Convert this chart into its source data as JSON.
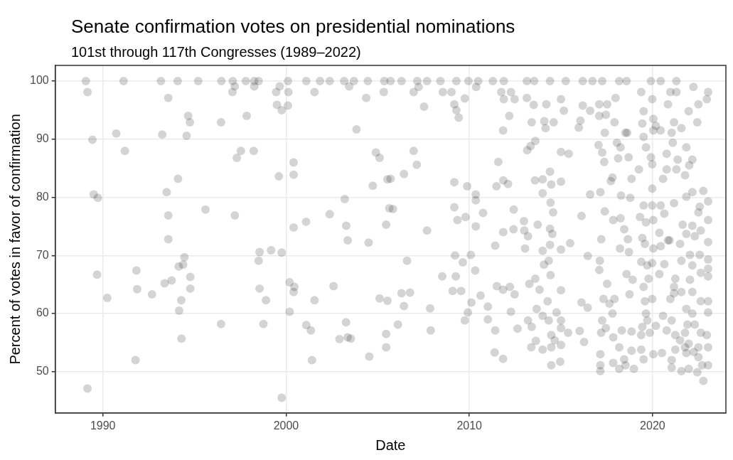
{
  "chart_data": {
    "type": "scatter",
    "title": "Senate confirmation votes on presidential nominations",
    "subtitle": "101st through 117th Congresses (1989–2022)",
    "xlabel": "Date",
    "ylabel": "Percent of votes in favor of confirmation",
    "xlim": [
      1987.4,
      2024.0
    ],
    "ylim": [
      42.9,
      102.7
    ],
    "xticks": [
      1990,
      2000,
      2010,
      2020
    ],
    "yticks": [
      50,
      60,
      70,
      80,
      90,
      100
    ],
    "grid": true,
    "marker": "circle",
    "legend": false,
    "series": [
      {
        "color": "#000000",
        "x": [
          1989.07,
          1989.16,
          1991.13,
          1993.17,
          1994.08,
          1995.2,
          1996.47,
          1997.09,
          1997.8,
          1998.26,
          1998.5,
          2000.1,
          2001.1,
          2001.85,
          2002.38,
          2003.17,
          2003.7,
          2004.46,
          2005.36,
          1997.2,
          1998.26,
          1997.07,
          1999.65,
          1999.46,
          2000.12,
          2001.55,
          2003.44,
          2004.37,
          2005.33,
          1993.57,
          1999.5,
          2000.1,
          1999.76,
          1994.65,
          1994.75,
          1996.45,
          1997.85,
          2003.84,
          1990.73,
          1993.24,
          1994.57,
          1989.43,
          1991.2,
          1997.53,
          1998.23,
          1997.31,
          2000.41,
          2000.41,
          1999.6,
          2004.9,
          2005.1,
          2004.73,
          1994.1,
          1993.48,
          1989.5,
          1989.73,
          2005.53,
          2003.2,
          1995.6,
          1993.57,
          1997.2,
          2002.38,
          2005.63,
          2001.09,
          2000.41,
          2003.28,
          2003.36,
          2004.5,
          2005.46,
          1993.57,
          1998.55,
          1999.18,
          1999.76,
          1998.5,
          1994.45,
          1994.14,
          1994.38,
          1989.68,
          1991.83,
          1994.77,
          1993.37,
          1993.75,
          1994.77,
          1991.87,
          1992.68,
          1990.24,
          1994.28,
          1994.16,
          1998.55,
          1998.9,
          2000.19,
          2000.45,
          2000.41,
          2001.55,
          2002.59,
          2000.19,
          2005.1,
          2005.53,
          1996.45,
          1998.76,
          2001.1,
          2001.35,
          2003.27,
          2002.91,
          2003.36,
          2003.53,
          2005.46,
          2005.46,
          1994.29,
          1991.78,
          2001.41,
          2004.54,
          1989.16,
          1999.76,
          2005.7,
          2006.3,
          2007.16,
          2007.69,
          2008.42,
          2009.29,
          2009.95,
          2010.48,
          2011.28,
          2011.88,
          2013.14,
          2013.54,
          2014.4,
          2015.26,
          2016.19,
          2016.72,
          2017.25,
          2018.18,
          2018.58,
          2019.91,
          2020.44,
          2021.3,
          2006.96,
          2007.23,
          2007.53,
          2008.55,
          2009.02,
          2009.18,
          2009.29,
          2009.42,
          2009.75,
          2010.37,
          2011.74,
          2012.27,
          2012.47,
          2011.88,
          2012.18,
          2011.84,
          2013.14,
          2013.51,
          2013.4,
          2014.2,
          2014.09,
          2014.6,
          2014.16,
          2015.0,
          2015.16,
          2016.06,
          2015.97,
          2016.59,
          2016.19,
          2017.09,
          2017.52,
          2017.09,
          2017.45,
          2017.92,
          2017.39,
          2017.98,
          2019.38,
          2019.98,
          2019.51,
          2019.44,
          2020.04,
          2019.51,
          2020.97,
          2021.3,
          2022.23,
          2023.03,
          2022.96,
          2022.5,
          2021.97,
          2022.44,
          2020.84,
          2021.17,
          2021.57,
          2021.04,
          2018.61,
          2006.96,
          2007.13,
          2006.43,
          2005.7,
          2007.69,
          2005.83,
          2006.6,
          2006.3,
          2006.76,
          2006.43,
          2006.1,
          2007.86,
          2007.89,
          2008.52,
          2009.18,
          2009.18,
          2009.35,
          2009.79,
          2009.22,
          2009.26,
          2009.09,
          2009.55,
          2009.64,
          2010.08,
          2010.32,
          2009.88,
          2010.35,
          2010.35,
          2010.75,
          2010.35,
          2010.11,
          2009.92,
          2009.75,
          2010.61,
          2011.01,
          2011.01,
          2011.41,
          2011.38,
          2011.84,
          2011.58,
          2011.85,
          2011.48,
          2012.11,
          2011.85,
          2011.41,
          2011.5,
          2011.84,
          2012.21,
          2012.47,
          2012.27,
          2012.63,
          2012.42,
          2012.41,
          2012.98,
          2013.04,
          2013.2,
          2013.0,
          2013.6,
          2013.34,
          2013.16,
          2013.58,
          2013.73,
          2013.27,
          2013.6,
          2013.83,
          2013.2,
          2013.4,
          2013.63,
          2013.38,
          2014.0,
          2013.67,
          2014.0,
          2014.0,
          2014.4,
          2014.47,
          2014.43,
          2014.57,
          2014.4,
          2014.53,
          2014.4,
          2014.0,
          2014.33,
          2014.07,
          2014.43,
          2014.27,
          2014.0,
          2014.33,
          2014.47,
          2014.66,
          2014.47,
          2015.0,
          2014.47,
          2014.96,
          2015.0,
          2015.0,
          2014.76,
          2015.39,
          2015.0,
          2015.0,
          2015.42,
          2015.5,
          2015.0,
          2015.0,
          2016.12,
          2016.02,
          2016.26,
          2016.12,
          2016.46,
          2016.46,
          2016.59,
          2017.15,
          2017.39,
          2017.2,
          2017.12,
          2017.09,
          2017.52,
          2017.32,
          2017.25,
          2017.19,
          2017.15,
          2017.15,
          2017.15,
          2017.05,
          2017.25,
          2017.36,
          2017.72,
          2017.81,
          2018.05,
          2018.25,
          2018.12,
          2018.52,
          2018.69,
          2017.85,
          2018.25,
          2018.45,
          2018.65,
          2018.22,
          2018.71,
          2018.58,
          2018.91,
          2018.74,
          2017.92,
          2017.65,
          2017.81,
          2017.45,
          2017.85,
          2018.32,
          2018.85,
          2018.18,
          2017.85,
          2018.18,
          2018.52,
          2018.98,
          2018.85,
          2018.45,
          2018.28,
          2018.78,
          2018.85,
          2019.25,
          2019.51,
          2019.31,
          2019.64,
          2019.44,
          2019.58,
          2019.38,
          2019.71,
          2019.51,
          2019.58,
          2019.64,
          2019.71,
          2019.44,
          2019.38,
          2019.38,
          2019.51,
          2019.98,
          2019.98,
          2020.04,
          2020.04,
          2019.98,
          2019.78,
          2019.98,
          2019.85,
          2020.04,
          2020.18,
          2019.91,
          2019.98,
          2019.64,
          2020.04,
          2020.18,
          2020.44,
          2020.77,
          2020.77,
          2020.57,
          2020.44,
          2020.64,
          2020.37,
          2020.84,
          2020.44,
          2020.64,
          2020.37,
          2021.17,
          2020.97,
          2020.57,
          2021.04,
          2020.77,
          2020.51,
          2021.04,
          2021.24,
          2021.5,
          2021.57,
          2021.1,
          2021.37,
          2021.84,
          2022.17,
          2022.0,
          2021.77,
          2021.3,
          2021.17,
          2021.84,
          2022.17,
          2022.77,
          2023.03,
          2023.03,
          2022.57,
          2022.5,
          2021.64,
          2022.17,
          2022.63,
          2021.84,
          2022.3,
          2023.03,
          2020.92,
          2021.5,
          2022.04,
          2022.57,
          2023.03,
          2021.57,
          2022.17,
          2023.03,
          2022.63,
          2021.24,
          2022.04,
          2023.03,
          2022.17,
          2021.17,
          2021.57,
          2022.63,
          2023.03,
          2021.84,
          2022.17,
          2023.03,
          2021.9,
          2022.3,
          2022.63,
          2022.96,
          2021.77,
          2021.24,
          2021.77,
          2021.97,
          2022.5,
          2023.03,
          2021.84,
          2022.24,
          2022.5,
          2022.7,
          2023.03,
          2021.97,
          2022.44,
          2022.77,
          2021.04
        ],
        "values": [
          100,
          98.1,
          100,
          100,
          100,
          100,
          100,
          100,
          100,
          100,
          100,
          100,
          100,
          100,
          100,
          100,
          100,
          100,
          100,
          99.1,
          99.1,
          98.1,
          99.1,
          98.1,
          98.1,
          98.1,
          99.1,
          97.1,
          98.1,
          97.1,
          95.9,
          95.8,
          95.0,
          94.0,
          92.9,
          92.9,
          94.0,
          91.7,
          91.0,
          90.8,
          90.6,
          89.9,
          88.0,
          88.0,
          88.0,
          86.8,
          86.0,
          83.9,
          83.6,
          87.7,
          86.8,
          82.0,
          83.2,
          80.9,
          80.5,
          79.9,
          83.1,
          79.7,
          77.9,
          76.9,
          76.9,
          77.1,
          78.1,
          75.8,
          74.8,
          75.1,
          72.6,
          72.2,
          75.3,
          72.8,
          70.6,
          70.9,
          70.5,
          69.1,
          69.7,
          68.1,
          68.4,
          66.7,
          67.4,
          66.3,
          65.2,
          65.7,
          64.3,
          64.2,
          63.3,
          62.7,
          62.3,
          60.5,
          64.3,
          62.3,
          65.4,
          64.6,
          63.7,
          62.3,
          64.7,
          60.3,
          62.6,
          62.2,
          58.2,
          58.2,
          58.0,
          57.1,
          58.5,
          55.6,
          55.9,
          55.7,
          56.5,
          54.2,
          55.7,
          52.0,
          52.0,
          52.6,
          47.1,
          45.5,
          100,
          100,
          100,
          100,
          100,
          100,
          100,
          100,
          100,
          100,
          100,
          100,
          100,
          100,
          100,
          100,
          100,
          100,
          100,
          100,
          100,
          100,
          98.1,
          99.0,
          95.6,
          98.1,
          98.1,
          96.0,
          95.0,
          93.7,
          97.0,
          99.0,
          98.1,
          98.1,
          96.9,
          96.9,
          94.0,
          91.5,
          97.1,
          95.9,
          92.9,
          96.0,
          93.1,
          92.9,
          91.9,
          96.9,
          94.9,
          93.2,
          92.0,
          94.9,
          95.8,
          96.0,
          96.0,
          94.0,
          94.2,
          92.9,
          91.1,
          97.1,
          98.1,
          96.9,
          94.8,
          92.7,
          91.5,
          90.4,
          98.1,
          98.1,
          99.0,
          98.1,
          96.9,
          96.0,
          94.8,
          92.9,
          96.0,
          92.9,
          91.9,
          91.1,
          91.1,
          88.0,
          85.6,
          84.0,
          83.2,
          74.3,
          78.0,
          69.1,
          63.5,
          63.6,
          61.3,
          58.1,
          60.9,
          57.1,
          66.4,
          82.6,
          78.3,
          76.1,
          76.6,
          70.0,
          66.4,
          63.9,
          63.9,
          68.8,
          70.1,
          67.4,
          81.9,
          80.5,
          79.5,
          77.3,
          75.0,
          61.9,
          60.2,
          58.8,
          63.1,
          61.2,
          59.0,
          57.1,
          53.3,
          52.2,
          86.1,
          82.9,
          81.9,
          82.3,
          74.0,
          71.7,
          64.7,
          64.1,
          64.6,
          63.3,
          60.3,
          57.4,
          77.9,
          74.5,
          75.9,
          71.2,
          73.3,
          74.3,
          89.7,
          88.8,
          88.1,
          82.9,
          75.3,
          65.1,
          66.0,
          64.1,
          58.8,
          57.7,
          55.3,
          54.2,
          53.8,
          60.8,
          83.1,
          80.7,
          84.4,
          82.2,
          79.1,
          77.4,
          74.6,
          73.7,
          71.8,
          70.8,
          69.1,
          68.4,
          66.6,
          62.1,
          59.6,
          58.8,
          56.3,
          55.4,
          54.2,
          54.6,
          51.1,
          51.7,
          58.8,
          57.5,
          60.2,
          56.7,
          82.7,
          87.8,
          87.5,
          72.1,
          71.0,
          64.0,
          76.8,
          57.0,
          55.1,
          61.9,
          61.0,
          69.9,
          80.5,
          80.9,
          77.6,
          72.8,
          69.1,
          67.5,
          65.1,
          62.5,
          58.8,
          56.7,
          53.0,
          51.1,
          50.1,
          89.0,
          87.7,
          86.1,
          82.8,
          83.4,
          89.4,
          88.6,
          86.7,
          91.1,
          86.9,
          76.1,
          76.4,
          74.5,
          72.8,
          71.2,
          70.6,
          66.8,
          65.8,
          63.3,
          62.5,
          61.7,
          60.0,
          57.5,
          55.9,
          57.1,
          56.9,
          54.2,
          51.5,
          50.5,
          51.1,
          50.5,
          53.6,
          52.1,
          80.3,
          79.9,
          83.2,
          84.8,
          78.6,
          76.6,
          75.7,
          73.0,
          72.0,
          68.9,
          68.3,
          64.6,
          62.1,
          60.0,
          58.8,
          57.7,
          56.3,
          53.8,
          52.1,
          81.5,
          78.6,
          76.1,
          71.2,
          68.7,
          66.0,
          62.5,
          56.7,
          53.0,
          57.9,
          86.9,
          85.7,
          88.6,
          93.5,
          92.3,
          91.5,
          87.5,
          84.8,
          83.2,
          78.6,
          77.2,
          73.9,
          72.6,
          71.6,
          68.5,
          66.8,
          63.5,
          62.5,
          59.6,
          58.8,
          57.1,
          53.2,
          50.7,
          53.8,
          55.4,
          50.1,
          89.4,
          86.5,
          88.6,
          86.5,
          85.5,
          83.8,
          84.8,
          79.0,
          80.1,
          80.9,
          81.1,
          79.3,
          76.1,
          78.4,
          77.4,
          75.3,
          75.1,
          74.3,
          73.7,
          73.3,
          72.3,
          72.6,
          72.0,
          70.1,
          70.1,
          69.3,
          69.1,
          68.3,
          67.7,
          67.0,
          66.0,
          65.8,
          66.4,
          63.7,
          64.6,
          63.7,
          62.1,
          62.1,
          60.8,
          60.0,
          60.2,
          58.1,
          58.1,
          56.7,
          56.3,
          56.7,
          56.3,
          54.2,
          54.8,
          54.2,
          54.2,
          53.2,
          53.4,
          52.5,
          51.1,
          51.1,
          50.5,
          49.9,
          48.4,
          52.0
        ]
      }
    ]
  }
}
